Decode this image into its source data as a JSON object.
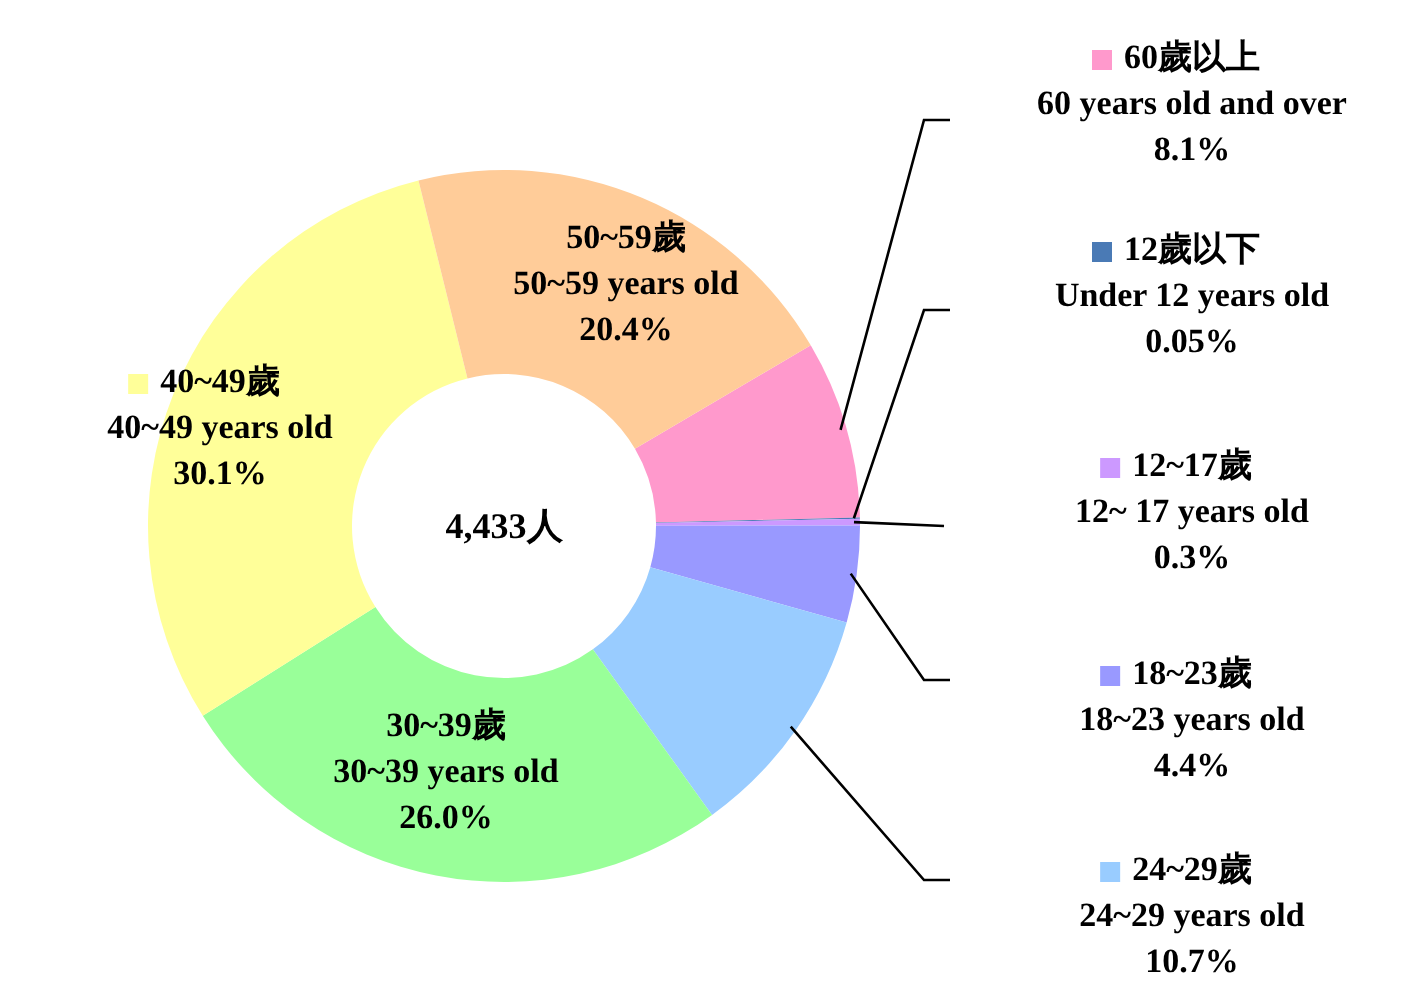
{
  "chart_data": {
    "type": "donut",
    "categories": [
      "60歲以上\n60 years old and over",
      "12歲以下\nUnder 12 years old",
      "12~17歲\n12~ 17 years old",
      "18~23歲\n18~23 years old",
      "24~29歲\n24~29 years old",
      "30~39歲\n30~39 years old",
      "40~49歲\n40~49 years old",
      "50~59歲\n50~59 years old"
    ],
    "values": [
      8.1,
      0.05,
      0.3,
      4.4,
      10.7,
      26.0,
      30.1,
      20.4
    ],
    "value_labels": [
      "8.1%",
      "0.05%",
      "0.3%",
      "4.4%",
      "10.7%",
      "26.0%",
      "30.1%",
      "20.4%"
    ],
    "colors": [
      "#ff99cc",
      "#4a7ab5",
      "#cc99ff",
      "#9999ff",
      "#99ccff",
      "#99ff99",
      "#ffff99",
      "#ffcc99"
    ],
    "annotations": [
      "4,433人"
    ],
    "legend": "right"
  }
}
